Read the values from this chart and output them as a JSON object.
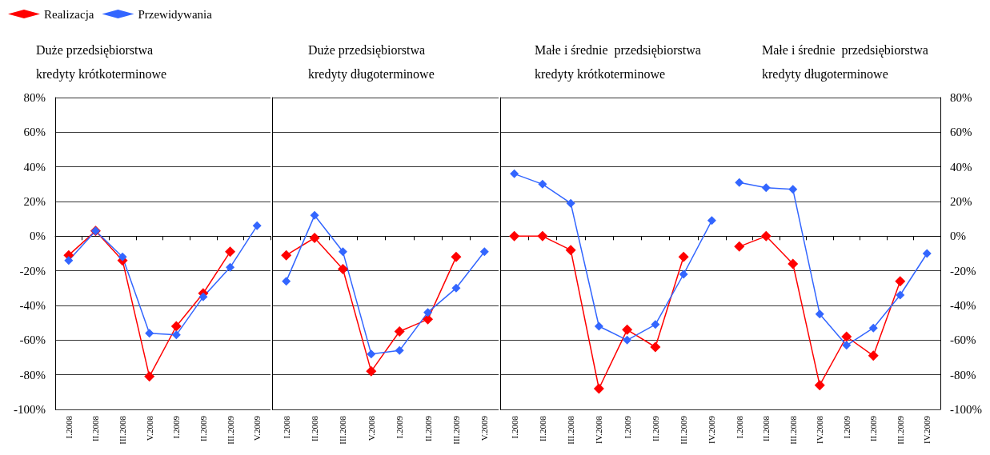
{
  "chart_data": [
    {
      "type": "line",
      "title": "Duże przedsiębiorstwa\nkredyty krótkoterminowe",
      "categories": [
        "I.2008",
        "II.2008",
        "III.2008",
        "V.2008",
        "I.2009",
        "II.2009",
        "III.2009",
        "V.2009"
      ],
      "series": [
        {
          "name": "Realizacja",
          "color": "#ff0000",
          "values": [
            -11,
            3,
            -14,
            -81,
            -52,
            -33,
            -9,
            null
          ]
        },
        {
          "name": "Przewidywania",
          "color": "#3366ff",
          "values": [
            -14,
            3,
            -12,
            -56,
            -57,
            -35,
            -18,
            6
          ]
        }
      ],
      "ylim": [
        -100,
        80
      ],
      "yticks": [
        {
          "value": -100,
          "label": "-100%"
        },
        {
          "value": -80,
          "label": "-80%"
        },
        {
          "value": -60,
          "label": "-60%"
        },
        {
          "value": -40,
          "label": "-40%"
        },
        {
          "value": -20,
          "label": "-20%"
        },
        {
          "value": 0,
          "label": "0%"
        },
        {
          "value": 20,
          "label": "20%"
        },
        {
          "value": 40,
          "label": "40%"
        },
        {
          "value": 60,
          "label": "60%"
        },
        {
          "value": 80,
          "label": "80%"
        }
      ],
      "grid": "y",
      "legend": "top left",
      "marker": "diamond"
    },
    {
      "type": "line",
      "title": "Duże przedsiębiorstwa\nkredyty długoterminowe",
      "categories": [
        "I.2008",
        "II.2008",
        "III.2008",
        "V.2008",
        "I.2009",
        "II.2009",
        "III.2009",
        "V.2009"
      ],
      "series": [
        {
          "color": "#ff0000",
          "values": [
            -11,
            -1,
            -19,
            -78,
            -55,
            -48,
            -12,
            null
          ]
        },
        {
          "color": "#3366ff",
          "values": [
            -26,
            12,
            -9,
            -68,
            -66,
            -44,
            -30,
            -9
          ]
        }
      ],
      "ylim": [
        -100,
        80
      ],
      "yticks": [
        -100,
        -80,
        -60,
        -40,
        -20,
        0,
        20,
        40,
        60,
        80
      ],
      "tick_labels": "x",
      "grid": "y",
      "marker": "diamond"
    },
    {
      "type": "line",
      "title": "Małe i średnie  przedsiębiorstwa\nkredyty krótkoterminowe",
      "categories": [
        "I.2008",
        "II.2008",
        "III.2008",
        "IV.2008",
        "I.2009",
        "II.2009",
        "III.2009",
        "IV.2009"
      ],
      "series": [
        {
          "color": "#ff0000",
          "values": [
            0,
            0,
            -8,
            -88,
            -54,
            -64,
            -12,
            null
          ]
        },
        {
          "color": "#3366ff",
          "values": [
            36,
            30,
            19,
            -52,
            -60,
            -51,
            -22,
            9
          ]
        }
      ],
      "ylim": [
        -100,
        80
      ],
      "yticks": [
        -100,
        -80,
        -60,
        -40,
        -20,
        0,
        20,
        40,
        60,
        80
      ],
      "tick_labels": "x",
      "grid": "y",
      "marker": "diamond"
    },
    {
      "type": "line",
      "title": "Małe i średnie  przedsiębiorstwa\nkredyty długoterminowe",
      "categories": [
        "I.2008",
        "II.2008",
        "III.2008",
        "IV.2008",
        "I.2009",
        "II.2009",
        "III.2009",
        "IV.2009"
      ],
      "series": [
        {
          "color": "#ff0000",
          "values": [
            -6,
            0,
            -16,
            -86,
            -58,
            -69,
            -26,
            null
          ],
          "axis": "y2"
        },
        {
          "color": "#3366ff",
          "values": [
            31,
            28,
            27,
            -45,
            -63,
            -53,
            -34,
            -10
          ],
          "axis": "y2"
        }
      ],
      "y2lim": [
        -100,
        80
      ],
      "y2ticks": [
        {
          "value": -100,
          "label": "-100%"
        },
        {
          "value": -80,
          "label": "-80%"
        },
        {
          "value": -60,
          "label": "-60%"
        },
        {
          "value": -40,
          "label": "-40%"
        },
        {
          "value": -20,
          "label": "-20%"
        },
        {
          "value": 0,
          "label": "0%"
        },
        {
          "value": 20,
          "label": "20%"
        },
        {
          "value": 40,
          "label": "40%"
        },
        {
          "value": 60,
          "label": "60%"
        },
        {
          "value": 80,
          "label": "80%"
        }
      ],
      "grid": "y",
      "marker": "diamond"
    }
  ]
}
